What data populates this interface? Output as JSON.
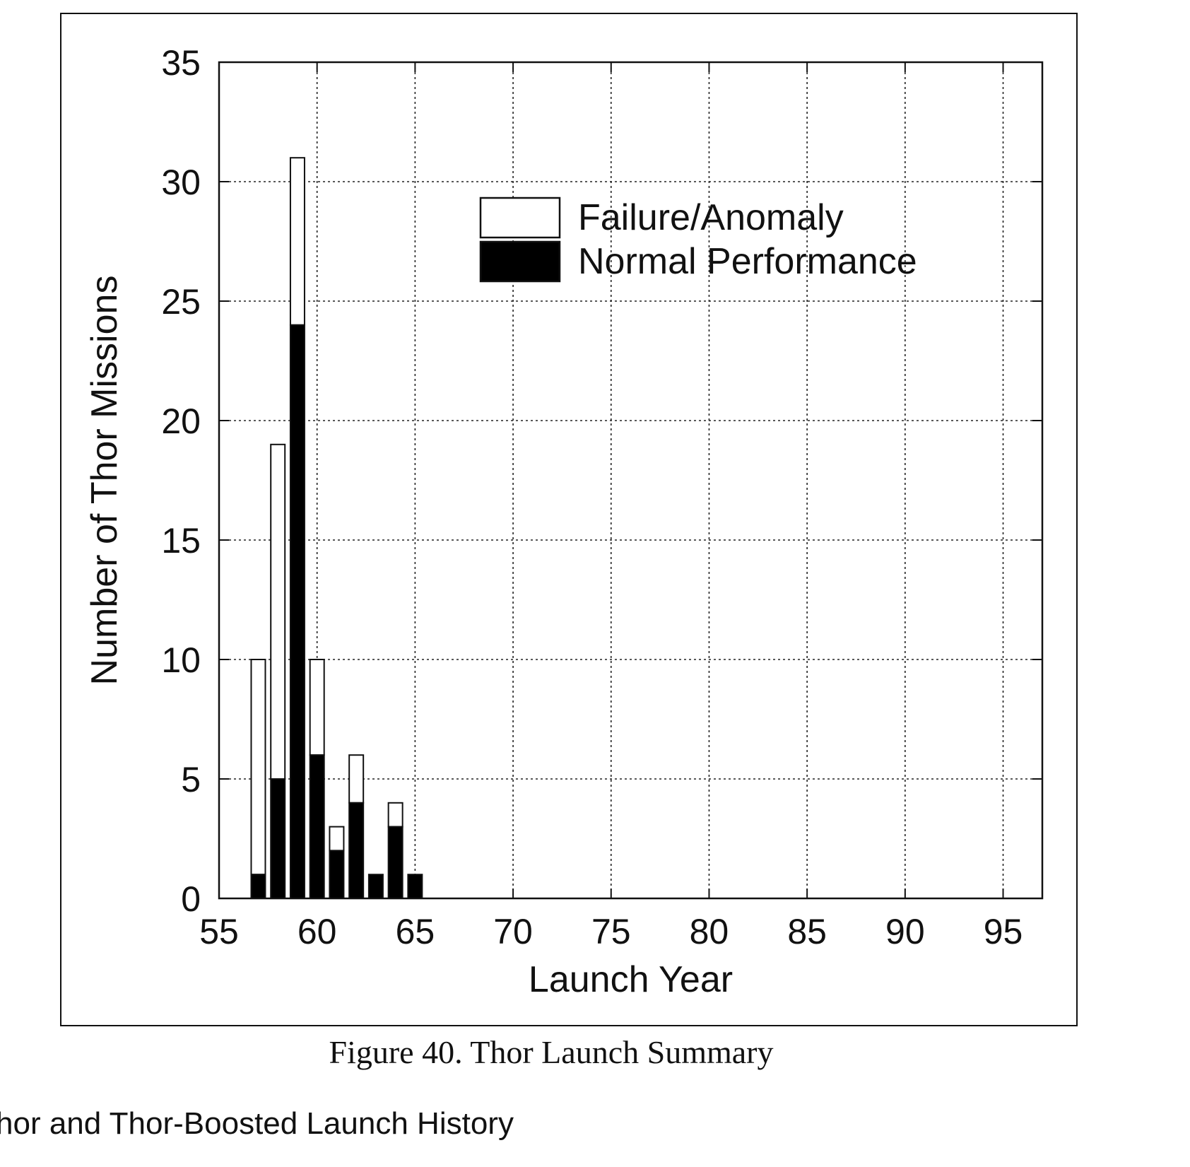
{
  "chart_data": {
    "type": "bar",
    "stacked": true,
    "title": "",
    "xlabel": "Launch Year",
    "ylabel": "Number of Thor Missions",
    "xlim": [
      55,
      97
    ],
    "ylim": [
      0,
      35
    ],
    "xticks": [
      55,
      60,
      65,
      70,
      75,
      80,
      85,
      90,
      95
    ],
    "yticks": [
      0,
      5,
      10,
      15,
      20,
      25,
      30,
      35
    ],
    "grid": true,
    "legend_position": "top-right",
    "x": [
      57,
      58,
      59,
      60,
      61,
      62,
      63,
      64,
      65
    ],
    "series": [
      {
        "name": "Normal Performance",
        "color": "#000000",
        "values": [
          1,
          5,
          24,
          6,
          2,
          4,
          1,
          3,
          1
        ]
      },
      {
        "name": "Failure/Anomaly",
        "color": "#ffffff",
        "values": [
          9,
          14,
          7,
          4,
          1,
          2,
          0,
          1,
          0
        ]
      }
    ],
    "legend": [
      "Failure/Anomaly",
      "Normal Performance"
    ]
  },
  "caption": "Figure 40. Thor Launch Summary",
  "section_heading": "hor and Thor-Boosted Launch History"
}
